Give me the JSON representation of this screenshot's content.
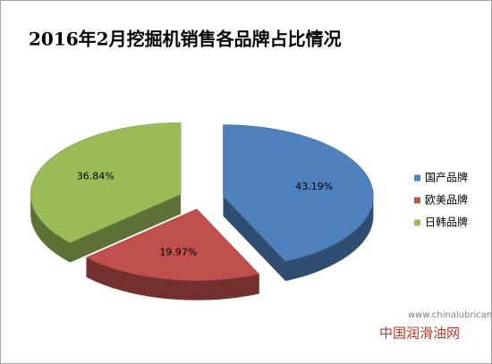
{
  "chart_data": {
    "type": "pie3d",
    "title": "2016年2月挖掘机销售各品牌占比情况",
    "categories": [
      "国产品牌",
      "欧美品牌",
      "日韩品牌"
    ],
    "values": [
      43.19,
      19.97,
      36.84
    ],
    "value_labels": [
      "43.19%",
      "19.97%",
      "36.84%"
    ],
    "colors": [
      "#4f81bd",
      "#c0504d",
      "#9bbb59"
    ],
    "legend": "right"
  },
  "watermark": {
    "url": "www.chinalubricant.com",
    "name": "中国润滑油网"
  }
}
